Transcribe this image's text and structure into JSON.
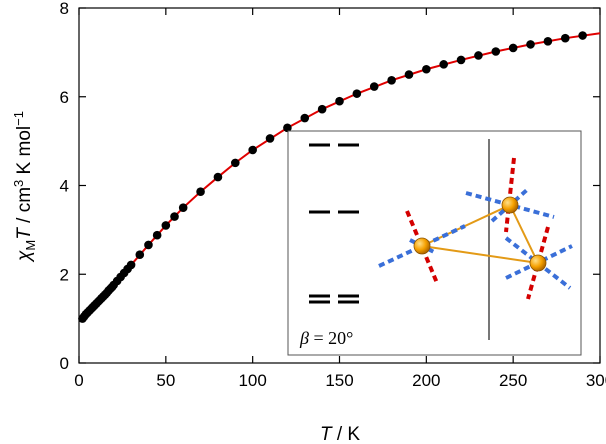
{
  "chart_data": {
    "type": "scatter",
    "xlim": [
      0,
      300
    ],
    "ylim": [
      0,
      8
    ],
    "xticks": [
      0,
      50,
      100,
      150,
      200,
      250,
      300
    ],
    "yticks": [
      0,
      2,
      4,
      6,
      8
    ],
    "tick_labels_x": [
      "0",
      "50",
      "100",
      "150",
      "200",
      "250",
      "300"
    ],
    "tick_labels_y": [
      "0",
      "2",
      "4",
      "6",
      "8"
    ],
    "xlabel_var": "T",
    "xlabel_unit": " / K",
    "ylabel_parts": {
      "chi": "χ",
      "sub": "M",
      "var": "T",
      "rest": " / cm",
      "sup1": "3",
      "mid": " K mol",
      "sup2": "−1"
    },
    "series": [
      {
        "kind": "experimental",
        "marker_color": "#000000",
        "x": [
          2,
          3,
          4,
          5,
          6,
          7,
          8,
          9,
          10,
          11,
          12,
          13,
          14,
          15,
          16,
          17,
          18,
          19,
          20,
          22,
          24,
          26,
          28,
          30,
          35,
          40,
          45,
          50,
          55,
          60,
          70,
          80,
          90,
          100,
          110,
          120,
          130,
          140,
          150,
          160,
          170,
          180,
          190,
          200,
          210,
          220,
          230,
          240,
          250,
          260,
          270,
          280,
          290
        ],
        "y": [
          1.0,
          1.05,
          1.1,
          1.14,
          1.18,
          1.22,
          1.26,
          1.3,
          1.34,
          1.38,
          1.42,
          1.46,
          1.5,
          1.54,
          1.58,
          1.63,
          1.67,
          1.71,
          1.76,
          1.85,
          1.94,
          2.03,
          2.12,
          2.21,
          2.44,
          2.66,
          2.88,
          3.1,
          3.3,
          3.5,
          3.86,
          4.19,
          4.51,
          4.8,
          5.06,
          5.3,
          5.52,
          5.72,
          5.9,
          6.07,
          6.23,
          6.37,
          6.5,
          6.62,
          6.73,
          6.83,
          6.93,
          7.02,
          7.1,
          7.18,
          7.25,
          7.32,
          7.38
        ]
      },
      {
        "kind": "fit",
        "line_color": "#e00000",
        "x": [
          2,
          5,
          10,
          15,
          20,
          25,
          30,
          40,
          50,
          60,
          70,
          80,
          90,
          100,
          120,
          140,
          160,
          180,
          200,
          220,
          240,
          260,
          280,
          300
        ],
        "y": [
          1.0,
          1.14,
          1.34,
          1.54,
          1.76,
          1.98,
          2.21,
          2.66,
          3.1,
          3.5,
          3.86,
          4.19,
          4.51,
          4.8,
          5.3,
          5.72,
          6.07,
          6.37,
          6.62,
          6.83,
          7.02,
          7.18,
          7.32,
          7.43
        ]
      }
    ],
    "inset": {
      "label_var": "β",
      "label_rest": " = 20°",
      "line_color": "#000000",
      "atom_color": "#f5a000",
      "bond_color": "#e39a16",
      "axis_red": "#d40000",
      "axis_blue": "#3a6fd8",
      "divider_color": "#777777"
    }
  }
}
